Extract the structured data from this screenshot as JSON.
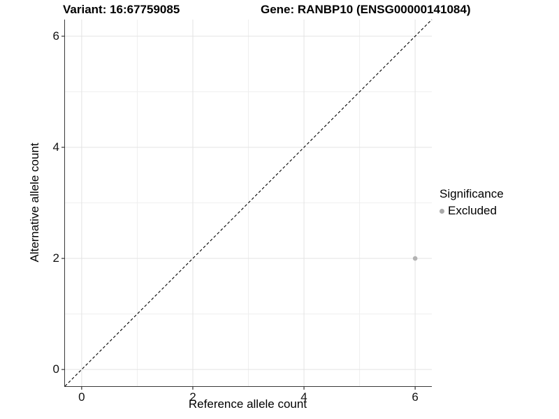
{
  "chart_data": {
    "type": "scatter",
    "title_left": "Variant: 16:67759085",
    "title_right": "Gene: RANBP10 (ENSG00000141084)",
    "xlabel": "Reference allele count",
    "ylabel": "Alternative allele count",
    "xlim": [
      -0.3,
      6.3
    ],
    "ylim": [
      -0.3,
      6.3
    ],
    "x_ticks": [
      0,
      2,
      4,
      6
    ],
    "y_ticks": [
      0,
      2,
      4,
      6
    ],
    "x_minor_ticks": [
      1,
      3,
      5
    ],
    "y_minor_ticks": [
      1,
      3,
      5
    ],
    "grid": "major+minor",
    "identity_line": {
      "style": "dashed",
      "slope": 1,
      "intercept": 0,
      "from": -0.3,
      "to": 6.3,
      "color": "#000000"
    },
    "series": [
      {
        "name": "Excluded",
        "color": "#b3b3b3",
        "points": [
          {
            "x": 6,
            "y": 2
          }
        ]
      }
    ],
    "legend": {
      "title": "Significance",
      "position": "right",
      "items": [
        {
          "label": "Excluded",
          "color": "#a9a9a9"
        }
      ]
    },
    "colors": {
      "grid_major": "#e3e3e3",
      "grid_minor": "#efefef",
      "axis": "#333333",
      "text": "#000000",
      "background": "#ffffff"
    }
  }
}
